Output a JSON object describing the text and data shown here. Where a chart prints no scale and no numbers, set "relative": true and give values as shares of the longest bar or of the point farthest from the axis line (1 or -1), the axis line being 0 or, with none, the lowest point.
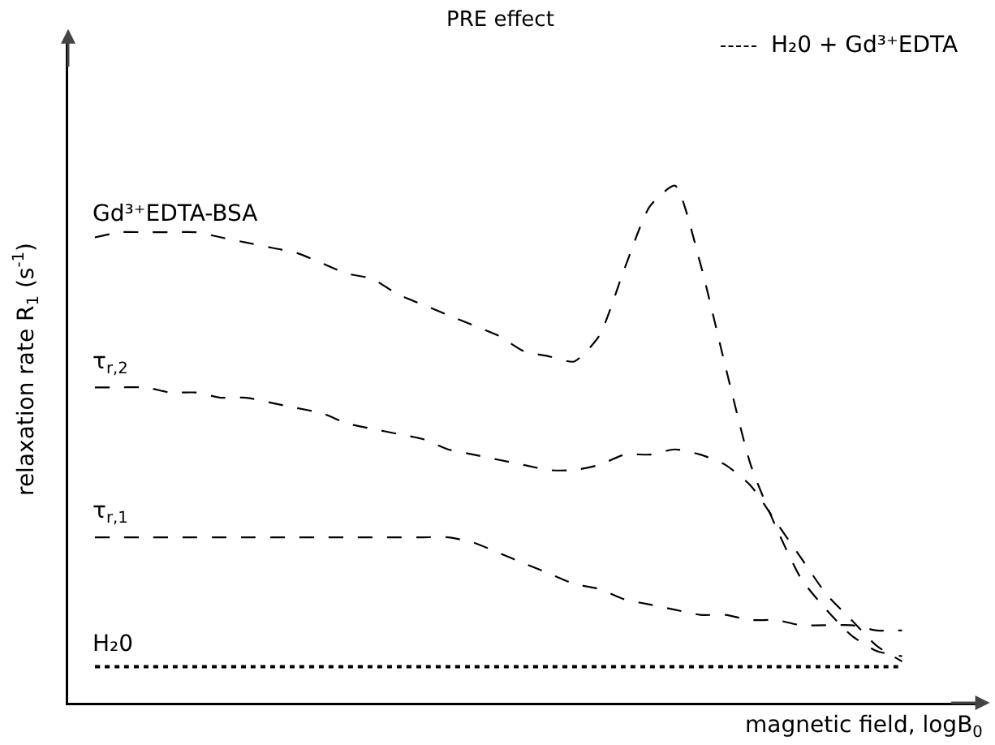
{
  "chart_data": {
    "type": "line",
    "title": "PRE effect",
    "xlabel": "magnetic field, logB$_{0}$",
    "ylabel": "relaxation rate R$_{1}$ (s$^{-1}$)",
    "relative": true,
    "legend": false,
    "categories": [
      null,
      null,
      null,
      null,
      null,
      null,
      null,
      null,
      null,
      null,
      null,
      null,
      null,
      null,
      null,
      null,
      null,
      null,
      null,
      null,
      null,
      null,
      null,
      null,
      null,
      null,
      null,
      null,
      null,
      null,
      null,
      null,
      null
    ],
    "series": [
      {
        "name": "Gd³⁺EDTA-BSA",
        "color": "#000000",
        "line_style": "dashed",
        "values": [
          0.9,
          0.91,
          0.91,
          0.91,
          0.91,
          0.9,
          0.89,
          0.88,
          0.87,
          0.85,
          0.83,
          0.82,
          0.79,
          0.77,
          0.75,
          0.73,
          0.71,
          0.68,
          0.67,
          0.66,
          0.71,
          0.84,
          0.96,
          1.0,
          0.85,
          0.65,
          0.46,
          0.34,
          0.24,
          0.18,
          0.13,
          0.1,
          0.09
        ]
      },
      {
        "name": "τ$_{r,2}$",
        "color": "#000000",
        "line_style": "dashed",
        "values": [
          0.61,
          0.61,
          0.61,
          0.6,
          0.6,
          0.59,
          0.59,
          0.58,
          0.57,
          0.56,
          0.54,
          0.53,
          0.52,
          0.51,
          0.49,
          0.48,
          0.47,
          0.46,
          0.45,
          0.45,
          0.46,
          0.48,
          0.48,
          0.49,
          0.48,
          0.46,
          0.42,
          0.35,
          0.28,
          0.21,
          0.16,
          0.11,
          0.08
        ]
      },
      {
        "name": "τ$_{r,1}$",
        "color": "#000000",
        "line_style": "dashed",
        "values": [
          0.32,
          0.32,
          0.32,
          0.32,
          0.32,
          0.32,
          0.32,
          0.32,
          0.32,
          0.32,
          0.32,
          0.32,
          0.32,
          0.32,
          0.32,
          0.31,
          0.29,
          0.27,
          0.25,
          0.23,
          0.22,
          0.2,
          0.19,
          0.18,
          0.17,
          0.17,
          0.16,
          0.16,
          0.15,
          0.15,
          0.15,
          0.14,
          0.14
        ]
      },
      {
        "name": "H₂0",
        "color": "#000000",
        "line_style": "dotted",
        "values": [
          0.07,
          0.07,
          0.07,
          0.07,
          0.07,
          0.07,
          0.07,
          0.07,
          0.07,
          0.07,
          0.07,
          0.07,
          0.07,
          0.07,
          0.07,
          0.07,
          0.07,
          0.07,
          0.07,
          0.07,
          0.07,
          0.07,
          0.07,
          0.07,
          0.07,
          0.07,
          0.07,
          0.07,
          0.07,
          0.07,
          0.07,
          0.07,
          0.07
        ]
      }
    ],
    "annotations": [
      "H₂0 + Gd³⁺EDTA"
    ]
  }
}
